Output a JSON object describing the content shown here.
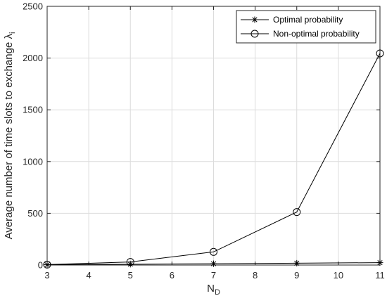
{
  "chart_data": {
    "type": "line",
    "x": [
      3,
      5,
      7,
      9,
      11
    ],
    "xlabel": "N",
    "xlabel_sub": "D",
    "ylabel": "Average number of time slots to exchange λ",
    "ylabel_sub": "i",
    "xlim": [
      3,
      11
    ],
    "ylim": [
      0,
      2500
    ],
    "xticks": [
      3,
      4,
      5,
      6,
      7,
      8,
      9,
      10,
      11
    ],
    "yticks": [
      0,
      500,
      1000,
      1500,
      2000,
      2500
    ],
    "grid": true,
    "legend_position": "top-right",
    "series": [
      {
        "name": "Optimal probability",
        "marker": "asterisk",
        "color": "#000000",
        "values": [
          3,
          8,
          13,
          18,
          23
        ]
      },
      {
        "name": "Non-optimal probability",
        "marker": "circle",
        "color": "#000000",
        "values": [
          4,
          30,
          127,
          512,
          2045
        ]
      }
    ]
  }
}
